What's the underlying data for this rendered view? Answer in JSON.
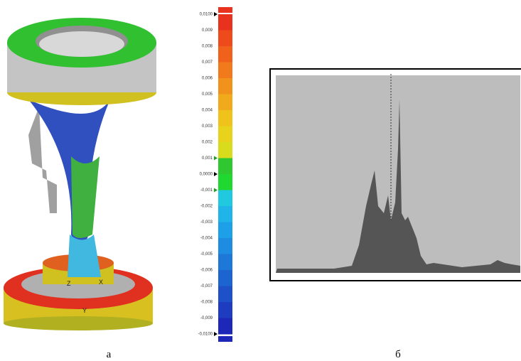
{
  "panel_a": {
    "label": "а",
    "axes": [
      "Z",
      "X",
      "Y"
    ],
    "colorbar": {
      "ticks": [
        "0,0100",
        "0,009",
        "0,008",
        "0,007",
        "0,006",
        "0,005",
        "0,004",
        "0,003",
        "0,002",
        "0,001",
        "0,0000",
        "-0,001",
        "-0,002",
        "-0,003",
        "-0,004",
        "-0,005",
        "-0,006",
        "-0,007",
        "-0,008",
        "-0,009",
        "-0,0100"
      ],
      "colors": [
        "#e8321e",
        "#ee4a1c",
        "#f0621c",
        "#f07a1c",
        "#f0921c",
        "#f0aa1c",
        "#f0c21c",
        "#e8d21c",
        "#d8dc1c",
        "#30c830",
        "#20d830",
        "#20c8e0",
        "#20b4e8",
        "#1ea0e8",
        "#1e8ce0",
        "#1e78d8",
        "#1e64d0",
        "#1e50c8",
        "#1e3cc0",
        "#1e28b8"
      ]
    }
  },
  "panel_b": {
    "label": "б"
  }
}
